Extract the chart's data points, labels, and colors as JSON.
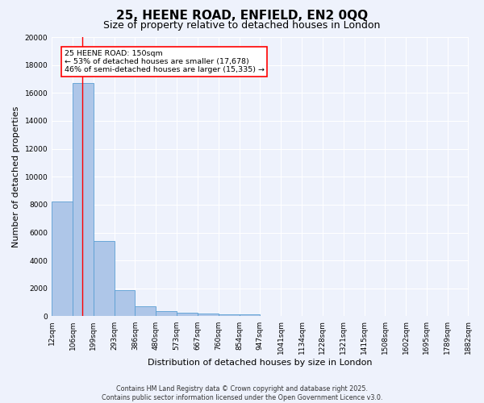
{
  "title": "25, HEENE ROAD, ENFIELD, EN2 0QQ",
  "subtitle": "Size of property relative to detached houses in London",
  "xlabel": "Distribution of detached houses by size in London",
  "ylabel": "Number of detached properties",
  "bin_edges": [
    12,
    106,
    199,
    293,
    386,
    480,
    573,
    667,
    760,
    854,
    947,
    1041,
    1134,
    1228,
    1321,
    1415,
    1508,
    1602,
    1695,
    1789,
    1882
  ],
  "bar_heights": [
    8200,
    16700,
    5400,
    1850,
    700,
    350,
    230,
    180,
    150,
    130,
    0,
    0,
    0,
    0,
    0,
    0,
    0,
    0,
    0,
    0
  ],
  "bar_color": "#aec6e8",
  "bar_edgecolor": "#5a9fd4",
  "red_line_x": 150,
  "ylim": [
    0,
    20000
  ],
  "yticks": [
    0,
    2000,
    4000,
    6000,
    8000,
    10000,
    12000,
    14000,
    16000,
    18000,
    20000
  ],
  "annotation_text": "25 HEENE ROAD: 150sqm\n← 53% of detached houses are smaller (17,678)\n46% of semi-detached houses are larger (15,335) →",
  "footer_line1": "Contains HM Land Registry data © Crown copyright and database right 2025.",
  "footer_line2": "Contains public sector information licensed under the Open Government Licence v3.0.",
  "bg_color": "#eef2fc",
  "grid_color": "#ffffff",
  "title_fontsize": 11,
  "subtitle_fontsize": 9,
  "axis_label_fontsize": 8,
  "tick_fontsize": 6.5,
  "tick_labels": [
    "12sqm",
    "106sqm",
    "199sqm",
    "293sqm",
    "386sqm",
    "480sqm",
    "573sqm",
    "667sqm",
    "760sqm",
    "854sqm",
    "947sqm",
    "1041sqm",
    "1134sqm",
    "1228sqm",
    "1321sqm",
    "1415sqm",
    "1508sqm",
    "1602sqm",
    "1695sqm",
    "1789sqm",
    "1882sqm"
  ]
}
